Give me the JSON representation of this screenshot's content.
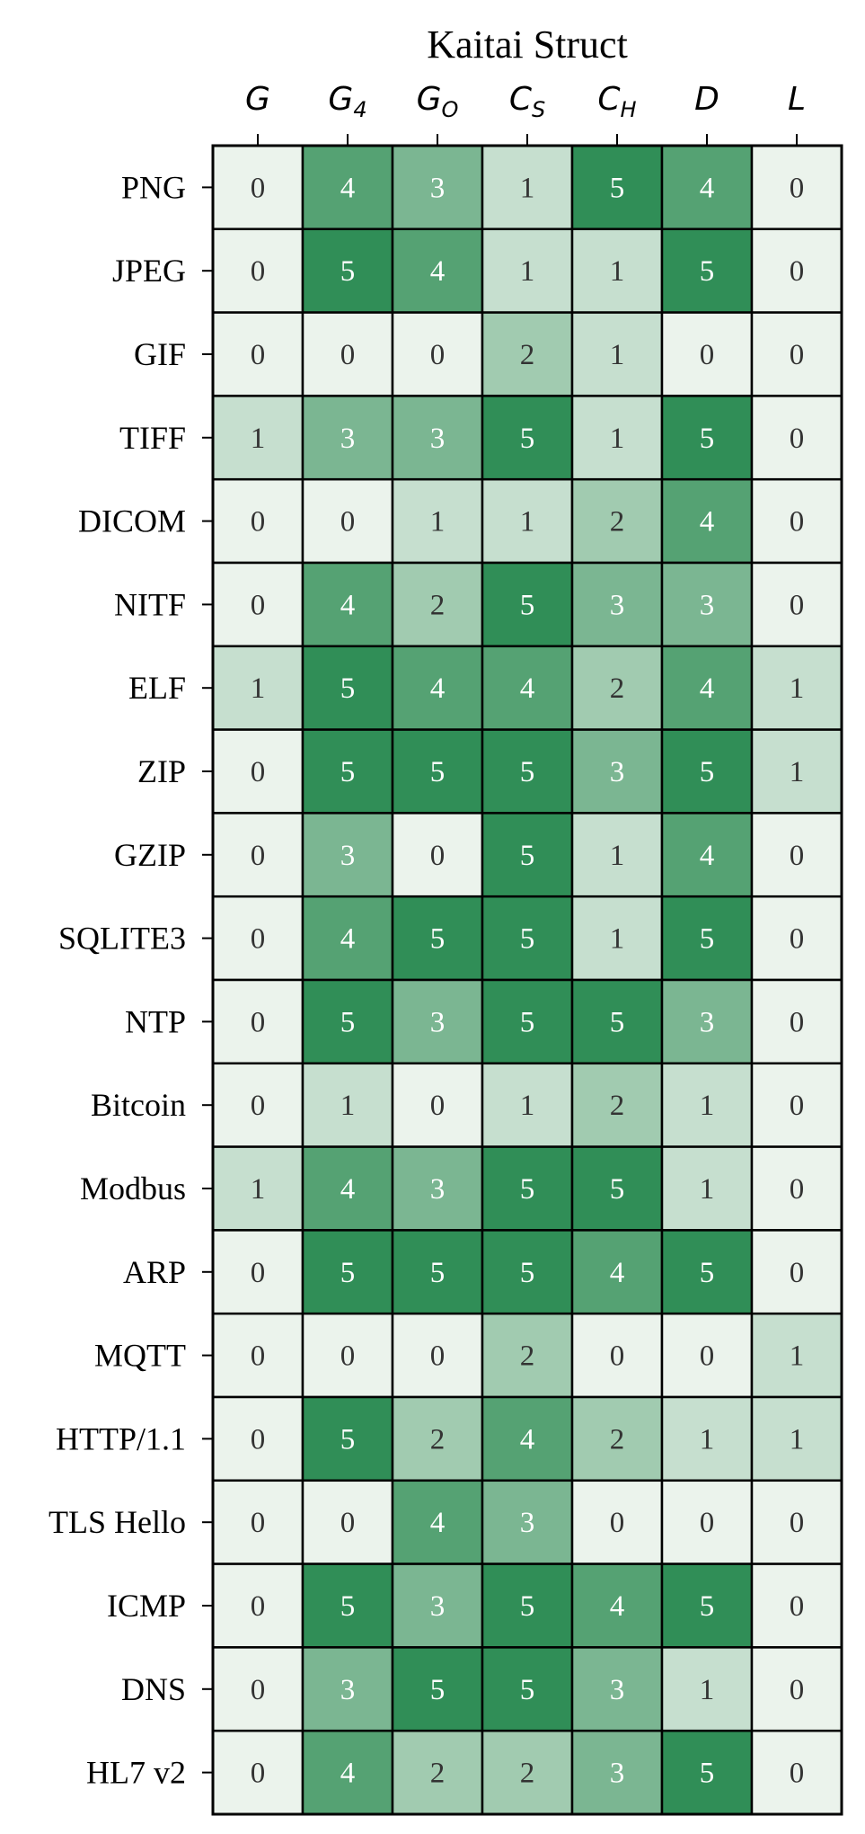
{
  "chart_data": {
    "type": "heatmap",
    "title": "Kaitai Struct",
    "columns": [
      {
        "base": "G",
        "sub": ""
      },
      {
        "base": "G",
        "sub": "4"
      },
      {
        "base": "G",
        "sub": "O"
      },
      {
        "base": "C",
        "sub": "S"
      },
      {
        "base": "C",
        "sub": "H"
      },
      {
        "base": "D",
        "sub": ""
      },
      {
        "base": "L",
        "sub": ""
      }
    ],
    "rows": [
      "PNG",
      "JPEG",
      "GIF",
      "TIFF",
      "DICOM",
      "NITF",
      "ELF",
      "ZIP",
      "GZIP",
      "SQLITE3",
      "NTP",
      "Bitcoin",
      "Modbus",
      "ARP",
      "MQTT",
      "HTTP/1.1",
      "TLS Hello",
      "ICMP",
      "DNS",
      "HL7 v2"
    ],
    "values": [
      [
        0,
        4,
        3,
        1,
        5,
        4,
        0
      ],
      [
        0,
        5,
        4,
        1,
        1,
        5,
        0
      ],
      [
        0,
        0,
        0,
        2,
        1,
        0,
        0
      ],
      [
        1,
        3,
        3,
        5,
        1,
        5,
        0
      ],
      [
        0,
        0,
        1,
        1,
        2,
        4,
        0
      ],
      [
        0,
        4,
        2,
        5,
        3,
        3,
        0
      ],
      [
        1,
        5,
        4,
        4,
        2,
        4,
        1
      ],
      [
        0,
        5,
        5,
        5,
        3,
        5,
        1
      ],
      [
        0,
        3,
        0,
        5,
        1,
        4,
        0
      ],
      [
        0,
        4,
        5,
        5,
        1,
        5,
        0
      ],
      [
        0,
        5,
        3,
        5,
        5,
        3,
        0
      ],
      [
        0,
        1,
        0,
        1,
        2,
        1,
        0
      ],
      [
        1,
        4,
        3,
        5,
        5,
        1,
        0
      ],
      [
        0,
        5,
        5,
        5,
        4,
        5,
        0
      ],
      [
        0,
        0,
        0,
        2,
        0,
        0,
        1
      ],
      [
        0,
        5,
        2,
        4,
        2,
        1,
        1
      ],
      [
        0,
        0,
        4,
        3,
        0,
        0,
        0
      ],
      [
        0,
        5,
        3,
        5,
        4,
        5,
        0
      ],
      [
        0,
        3,
        5,
        5,
        3,
        1,
        0
      ],
      [
        0,
        4,
        2,
        2,
        3,
        5,
        0
      ]
    ],
    "value_range": [
      0,
      5
    ],
    "colors": {
      "0": "#ebf3ec",
      "1": "#c6dfcf",
      "2": "#a1cbb0",
      "3": "#7bb692",
      "4": "#55a273",
      "5": "#308e57",
      "text_dark": "#333333",
      "text_light": "#ffffff",
      "grid": "#000000"
    }
  }
}
